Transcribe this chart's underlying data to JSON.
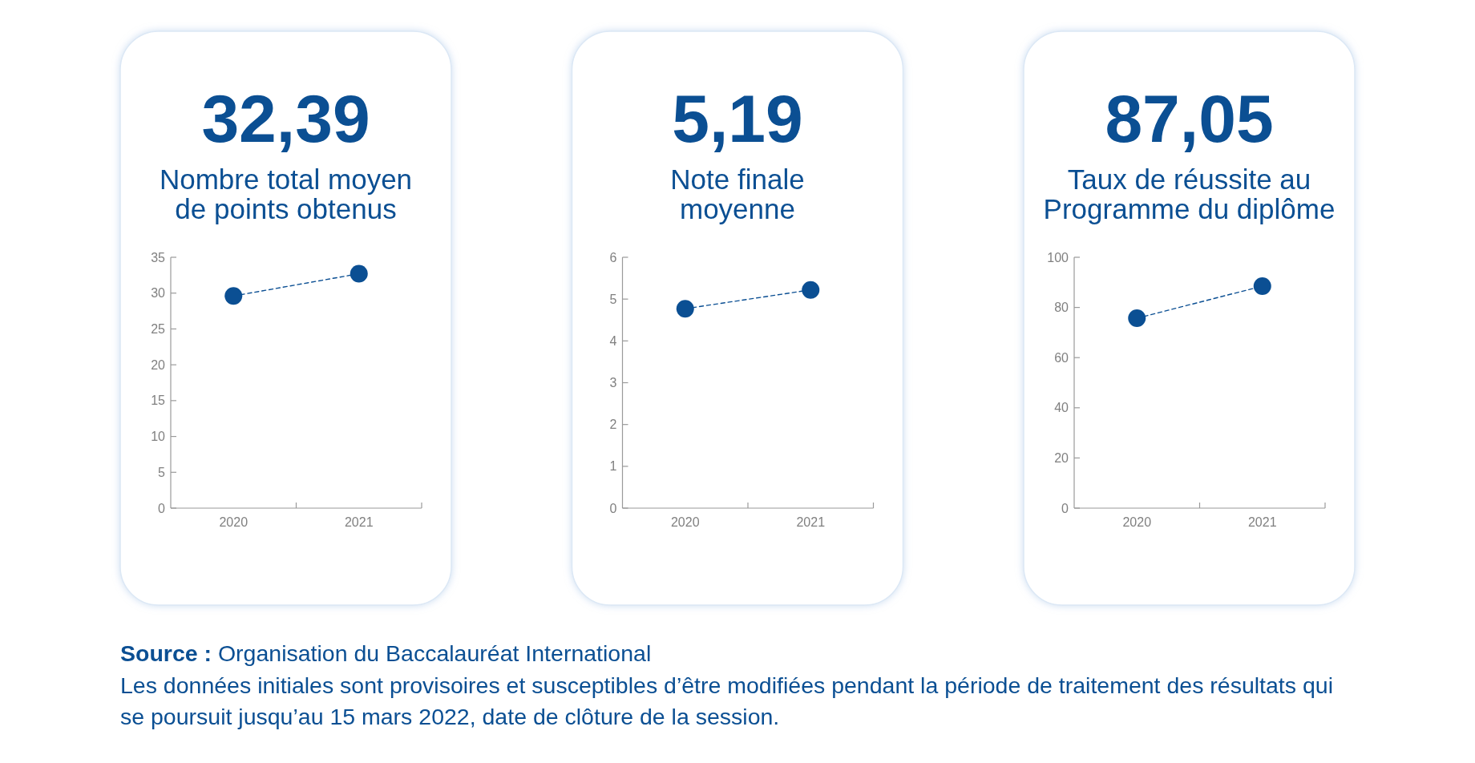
{
  "chart_data": [
    {
      "type": "line",
      "title": "32,39",
      "subtitle": "Nombre total moyen\nde points obtenus",
      "categories": [
        "2020",
        "2021"
      ],
      "values": [
        29.6,
        32.7
      ],
      "color": "#0b4f93",
      "marker": "circle",
      "line_style": "dashed",
      "ylim": [
        0,
        35
      ],
      "yticks": [
        0,
        5,
        10,
        15,
        20,
        25,
        30,
        35
      ]
    },
    {
      "type": "line",
      "title": "5,19",
      "subtitle": "Note finale\nmoyenne",
      "categories": [
        "2020",
        "2021"
      ],
      "values": [
        4.77,
        5.22
      ],
      "color": "#0b4f93",
      "marker": "circle",
      "line_style": "dashed",
      "ylim": [
        0,
        6
      ],
      "yticks": [
        0,
        1,
        2,
        3,
        4,
        5,
        6
      ]
    },
    {
      "type": "line",
      "title": "87,05",
      "subtitle": "Taux de réussite au\nProgramme du diplôme",
      "categories": [
        "2020",
        "2021"
      ],
      "values": [
        75.7,
        88.5
      ],
      "color": "#0b4f93",
      "marker": "circle",
      "line_style": "dashed",
      "ylim": [
        0,
        100
      ],
      "yticks": [
        0,
        20,
        40,
        60,
        80,
        100
      ],
      "annotations": [
        "Source : Organisation du Baccalauréat International",
        "Les données initiales sont provisoires et susceptibles d’être modifiées pendant la période de traitement des résultats qui se poursuit jusqu’au 15 mars 2022, date de clôture de la session."
      ]
    }
  ]
}
